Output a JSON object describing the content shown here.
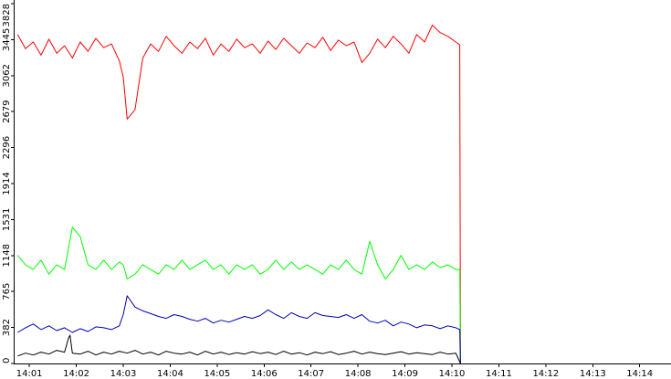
{
  "chart_data": {
    "type": "line",
    "title": "",
    "xlabel": "",
    "ylabel": "",
    "ylim": [
      0,
      3828
    ],
    "y_ticks": [
      "0",
      "382",
      "765",
      "1148",
      "1531",
      "1914",
      "2296",
      "2679",
      "3062",
      "3445",
      "3828"
    ],
    "x_ticks": [
      "14:01",
      "14:02",
      "14:03",
      "14:04",
      "14:05",
      "14:06",
      "14:07",
      "14:08",
      "14:09",
      "14:10",
      "14:11",
      "14:12",
      "14:13",
      "14:14"
    ],
    "x_start": "14:00:40",
    "x_end": "14:14:40",
    "grid": false,
    "legend": "none",
    "series": [
      {
        "color": "#ff0000",
        "x": [
          "14:00:45",
          "14:00:55",
          "14:01:05",
          "14:01:15",
          "14:01:25",
          "14:01:35",
          "14:01:45",
          "14:01:55",
          "14:02:05",
          "14:02:15",
          "14:02:25",
          "14:02:35",
          "14:02:45",
          "14:02:55",
          "14:03:00",
          "14:03:05",
          "14:03:15",
          "14:03:25",
          "14:03:35",
          "14:03:45",
          "14:03:55",
          "14:04:05",
          "14:04:15",
          "14:04:25",
          "14:04:35",
          "14:04:45",
          "14:04:55",
          "14:05:05",
          "14:05:15",
          "14:05:25",
          "14:05:35",
          "14:05:45",
          "14:05:55",
          "14:06:05",
          "14:06:15",
          "14:06:25",
          "14:06:35",
          "14:06:45",
          "14:06:55",
          "14:07:05",
          "14:07:15",
          "14:07:25",
          "14:07:35",
          "14:07:45",
          "14:07:55",
          "14:08:05",
          "14:08:15",
          "14:08:25",
          "14:08:35",
          "14:08:45",
          "14:08:55",
          "14:09:05",
          "14:09:15",
          "14:09:25",
          "14:09:35",
          "14:09:45",
          "14:09:55",
          "14:10:05",
          "14:10:10",
          "14:10:11"
        ],
        "y": [
          3500,
          3350,
          3420,
          3280,
          3450,
          3300,
          3380,
          3250,
          3420,
          3320,
          3460,
          3360,
          3400,
          3220,
          3050,
          2600,
          2700,
          3250,
          3400,
          3320,
          3480,
          3380,
          3300,
          3420,
          3350,
          3460,
          3280,
          3400,
          3320,
          3450,
          3360,
          3400,
          3300,
          3430,
          3340,
          3460,
          3380,
          3300,
          3410,
          3360,
          3470,
          3330,
          3440,
          3380,
          3420,
          3200,
          3300,
          3450,
          3360,
          3480,
          3400,
          3300,
          3500,
          3420,
          3600,
          3520,
          3480,
          3420,
          3390,
          0
        ]
      },
      {
        "color": "#00ff00",
        "x": [
          "14:00:45",
          "14:00:55",
          "14:01:05",
          "14:01:15",
          "14:01:25",
          "14:01:35",
          "14:01:45",
          "14:01:55",
          "14:02:05",
          "14:02:15",
          "14:02:25",
          "14:02:35",
          "14:02:45",
          "14:02:55",
          "14:03:00",
          "14:03:05",
          "14:03:15",
          "14:03:25",
          "14:03:35",
          "14:03:45",
          "14:03:55",
          "14:04:05",
          "14:04:15",
          "14:04:25",
          "14:04:35",
          "14:04:45",
          "14:04:55",
          "14:05:05",
          "14:05:15",
          "14:05:25",
          "14:05:35",
          "14:05:45",
          "14:05:55",
          "14:06:05",
          "14:06:15",
          "14:06:25",
          "14:06:35",
          "14:06:45",
          "14:06:55",
          "14:07:05",
          "14:07:15",
          "14:07:25",
          "14:07:35",
          "14:07:45",
          "14:07:55",
          "14:08:05",
          "14:08:15",
          "14:08:25",
          "14:08:35",
          "14:08:45",
          "14:08:55",
          "14:09:05",
          "14:09:15",
          "14:09:25",
          "14:09:35",
          "14:09:45",
          "14:09:55",
          "14:10:05",
          "14:10:10",
          "14:10:11"
        ],
        "y": [
          1150,
          1050,
          1000,
          1100,
          950,
          1050,
          1000,
          1450,
          1350,
          1050,
          1000,
          1100,
          1000,
          1080,
          1050,
          900,
          950,
          1050,
          1000,
          950,
          1050,
          1000,
          1100,
          1000,
          1050,
          1100,
          1000,
          1050,
          950,
          1050,
          1000,
          1050,
          950,
          1000,
          1100,
          1000,
          1080,
          1000,
          1050,
          1000,
          950,
          1050,
          1000,
          1100,
          1000,
          950,
          1300,
          1050,
          900,
          1000,
          1150,
          1000,
          1050,
          1000,
          1080,
          1020,
          1050,
          1000,
          1000,
          0
        ]
      },
      {
        "color": "#0000b4",
        "x": [
          "14:00:45",
          "14:00:55",
          "14:01:05",
          "14:01:15",
          "14:01:25",
          "14:01:35",
          "14:01:45",
          "14:01:55",
          "14:02:05",
          "14:02:15",
          "14:02:25",
          "14:02:35",
          "14:02:45",
          "14:02:55",
          "14:03:00",
          "14:03:05",
          "14:03:15",
          "14:03:25",
          "14:03:35",
          "14:03:45",
          "14:03:55",
          "14:04:05",
          "14:04:15",
          "14:04:25",
          "14:04:35",
          "14:04:45",
          "14:04:55",
          "14:05:05",
          "14:05:15",
          "14:05:25",
          "14:05:35",
          "14:05:45",
          "14:05:55",
          "14:06:05",
          "14:06:15",
          "14:06:25",
          "14:06:35",
          "14:06:45",
          "14:06:55",
          "14:07:05",
          "14:07:15",
          "14:07:25",
          "14:07:35",
          "14:07:45",
          "14:07:55",
          "14:08:05",
          "14:08:15",
          "14:08:25",
          "14:08:35",
          "14:08:45",
          "14:08:55",
          "14:09:05",
          "14:09:15",
          "14:09:25",
          "14:09:35",
          "14:09:45",
          "14:09:55",
          "14:10:05",
          "14:10:10",
          "14:10:11"
        ],
        "y": [
          330,
          380,
          420,
          360,
          400,
          350,
          380,
          330,
          370,
          340,
          390,
          380,
          360,
          400,
          520,
          720,
          600,
          560,
          530,
          500,
          480,
          520,
          500,
          470,
          450,
          480,
          430,
          460,
          440,
          470,
          500,
          480,
          510,
          570,
          520,
          480,
          540,
          500,
          480,
          540,
          510,
          500,
          490,
          520,
          480,
          520,
          450,
          430,
          460,
          400,
          440,
          420,
          380,
          410,
          400,
          370,
          400,
          380,
          360,
          0
        ]
      },
      {
        "color": "#000000",
        "x": [
          "14:00:45",
          "14:00:55",
          "14:01:05",
          "14:01:15",
          "14:01:25",
          "14:01:35",
          "14:01:45",
          "14:01:50",
          "14:01:52",
          "14:01:55",
          "14:02:05",
          "14:02:15",
          "14:02:25",
          "14:02:35",
          "14:02:45",
          "14:02:55",
          "14:03:05",
          "14:03:15",
          "14:03:25",
          "14:03:35",
          "14:03:45",
          "14:03:55",
          "14:04:05",
          "14:04:15",
          "14:04:25",
          "14:04:35",
          "14:04:45",
          "14:04:55",
          "14:05:05",
          "14:05:15",
          "14:05:25",
          "14:05:35",
          "14:05:45",
          "14:05:55",
          "14:06:05",
          "14:06:15",
          "14:06:25",
          "14:06:35",
          "14:06:45",
          "14:06:55",
          "14:07:05",
          "14:07:15",
          "14:07:25",
          "14:07:35",
          "14:07:45",
          "14:07:55",
          "14:08:05",
          "14:08:15",
          "14:08:25",
          "14:08:35",
          "14:08:45",
          "14:08:55",
          "14:09:05",
          "14:09:15",
          "14:09:25",
          "14:09:35",
          "14:09:45",
          "14:09:55",
          "14:10:05",
          "14:10:11"
        ],
        "y": [
          80,
          110,
          90,
          120,
          100,
          140,
          120,
          270,
          300,
          110,
          100,
          130,
          90,
          120,
          100,
          130,
          110,
          140,
          100,
          120,
          90,
          130,
          110,
          100,
          120,
          90,
          130,
          100,
          120,
          95,
          115,
          100,
          125,
          105,
          120,
          95,
          130,
          100,
          115,
          90,
          120,
          105,
          125,
          95,
          110,
          130,
          100,
          120,
          105,
          95,
          110,
          125,
          100,
          115,
          105,
          95,
          120,
          100,
          110,
          0
        ]
      }
    ]
  }
}
